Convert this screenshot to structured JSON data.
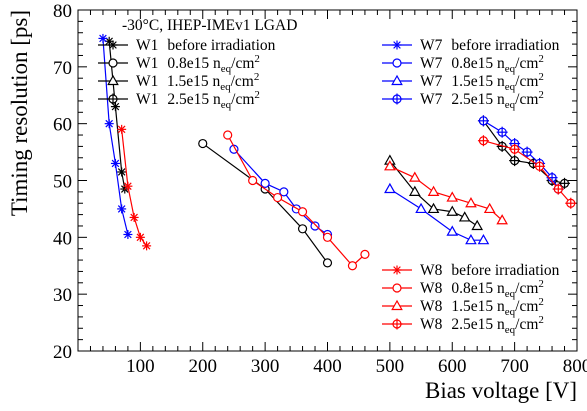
{
  "chart_data": {
    "type": "scatter",
    "title": "-30°C, IHEP-IMEv1 LGAD",
    "xlabel": "Bias voltage [V]",
    "ylabel": "Timing resolution [ps]",
    "xlim": [
      0,
      800
    ],
    "ylim": [
      20,
      80
    ],
    "x_ticks": [
      100,
      200,
      300,
      400,
      500,
      600,
      700,
      800
    ],
    "y_ticks": [
      20,
      30,
      40,
      50,
      60,
      70,
      80
    ],
    "grid": false,
    "series": [
      {
        "name": "W1  before irradiation",
        "sensor": "W1",
        "fluence": "before irradiation",
        "marker": "star",
        "color": "#000000",
        "x": [
          50,
          60,
          70,
          75
        ],
        "y": [
          74.5,
          63,
          51.5,
          48.5
        ]
      },
      {
        "name": "W1  0.8e15 neq/cm2",
        "sensor": "W1",
        "fluence": "0.8e15",
        "marker": "circle",
        "color": "#000000",
        "x": [
          200,
          300,
          360,
          400
        ],
        "y": [
          56.5,
          48.5,
          41.5,
          35.5
        ]
      },
      {
        "name": "W1  1.5e15 neq/cm2",
        "sensor": "W1",
        "fluence": "1.5e15",
        "marker": "triangle",
        "color": "#000000",
        "x": [
          500,
          540,
          570,
          600,
          620,
          640
        ],
        "y": [
          53.5,
          48,
          45,
          44.5,
          43.5,
          42
        ]
      },
      {
        "name": "W1  2.5e15 neq/cm2",
        "sensor": "W1",
        "fluence": "2.5e15",
        "marker": "cross-circle",
        "color": "#000000",
        "x": [
          650,
          680,
          700,
          730,
          760,
          780
        ],
        "y": [
          60.5,
          56,
          53.5,
          53,
          50,
          49.5
        ]
      },
      {
        "name": "W7  before irradiation",
        "sensor": "W7",
        "fluence": "before irradiation",
        "marker": "star",
        "color": "#0000ff",
        "x": [
          40,
          50,
          60,
          70,
          80
        ],
        "y": [
          75,
          60,
          53,
          45,
          40.5
        ]
      },
      {
        "name": "W7  0.8e15 neq/cm2",
        "sensor": "W7",
        "fluence": "0.8e15",
        "marker": "circle",
        "color": "#0000ff",
        "x": [
          250,
          300,
          330,
          350,
          380,
          400
        ],
        "y": [
          55.5,
          49.5,
          48,
          45,
          42,
          40.5
        ]
      },
      {
        "name": "W7  1.5e15 neq/cm2",
        "sensor": "W7",
        "fluence": "1.5e15",
        "marker": "triangle",
        "color": "#0000ff",
        "x": [
          500,
          550,
          600,
          630,
          650
        ],
        "y": [
          48.5,
          45,
          41,
          39.5,
          39.5
        ]
      },
      {
        "name": "W7  2.5e15 neq/cm2",
        "sensor": "W7",
        "fluence": "2.5e15",
        "marker": "cross-circle",
        "color": "#0000ff",
        "x": [
          650,
          680,
          700,
          720,
          740,
          760,
          770
        ],
        "y": [
          60.5,
          58.5,
          56.5,
          55,
          53,
          50.5,
          48.5
        ]
      },
      {
        "name": "W8  before irradiation",
        "sensor": "W8",
        "fluence": "before irradiation",
        "marker": "star",
        "color": "#ff0000",
        "x": [
          70,
          80,
          90,
          100,
          110
        ],
        "y": [
          59,
          49,
          43.5,
          40,
          38.5
        ]
      },
      {
        "name": "W8  0.8e15 neq/cm2",
        "sensor": "W8",
        "fluence": "0.8e15",
        "marker": "circle",
        "color": "#ff0000",
        "x": [
          240,
          280,
          320,
          360,
          400,
          440,
          460
        ],
        "y": [
          58,
          50,
          47,
          44.5,
          40,
          35,
          37
        ]
      },
      {
        "name": "W8  1.5e15 neq/cm2",
        "sensor": "W8",
        "fluence": "1.5e15",
        "marker": "triangle",
        "color": "#ff0000",
        "x": [
          500,
          540,
          570,
          600,
          630,
          660,
          680
        ],
        "y": [
          52.5,
          50.5,
          48,
          47,
          46,
          45,
          43
        ]
      },
      {
        "name": "W8  2.5e15 neq/cm2",
        "sensor": "W8",
        "fluence": "2.5e15",
        "marker": "cross-circle",
        "color": "#ff0000",
        "x": [
          650,
          700,
          740,
          770,
          790
        ],
        "y": [
          57,
          55.5,
          52.5,
          48.5,
          46
        ]
      }
    ],
    "legends": [
      {
        "position": "top-left",
        "entries": [
          {
            "sensor": "W1",
            "fluence": "before irradiation"
          },
          {
            "sensor": "W1",
            "fluence": "0.8e15"
          },
          {
            "sensor": "W1",
            "fluence": "1.5e15"
          },
          {
            "sensor": "W1",
            "fluence": "2.5e15"
          }
        ]
      },
      {
        "position": "top-right",
        "entries": [
          {
            "sensor": "W7",
            "fluence": "before irradiation"
          },
          {
            "sensor": "W7",
            "fluence": "0.8e15"
          },
          {
            "sensor": "W7",
            "fluence": "1.5e15"
          },
          {
            "sensor": "W7",
            "fluence": "2.5e15"
          }
        ]
      },
      {
        "position": "bottom-right",
        "entries": [
          {
            "sensor": "W8",
            "fluence": "before irradiation"
          },
          {
            "sensor": "W8",
            "fluence": "0.8e15"
          },
          {
            "sensor": "W8",
            "fluence": "1.5e15"
          },
          {
            "sensor": "W8",
            "fluence": "2.5e15"
          }
        ]
      }
    ],
    "unit_base": "n",
    "unit_sub": "eq",
    "unit_den": "/cm",
    "unit_sup": "2"
  }
}
